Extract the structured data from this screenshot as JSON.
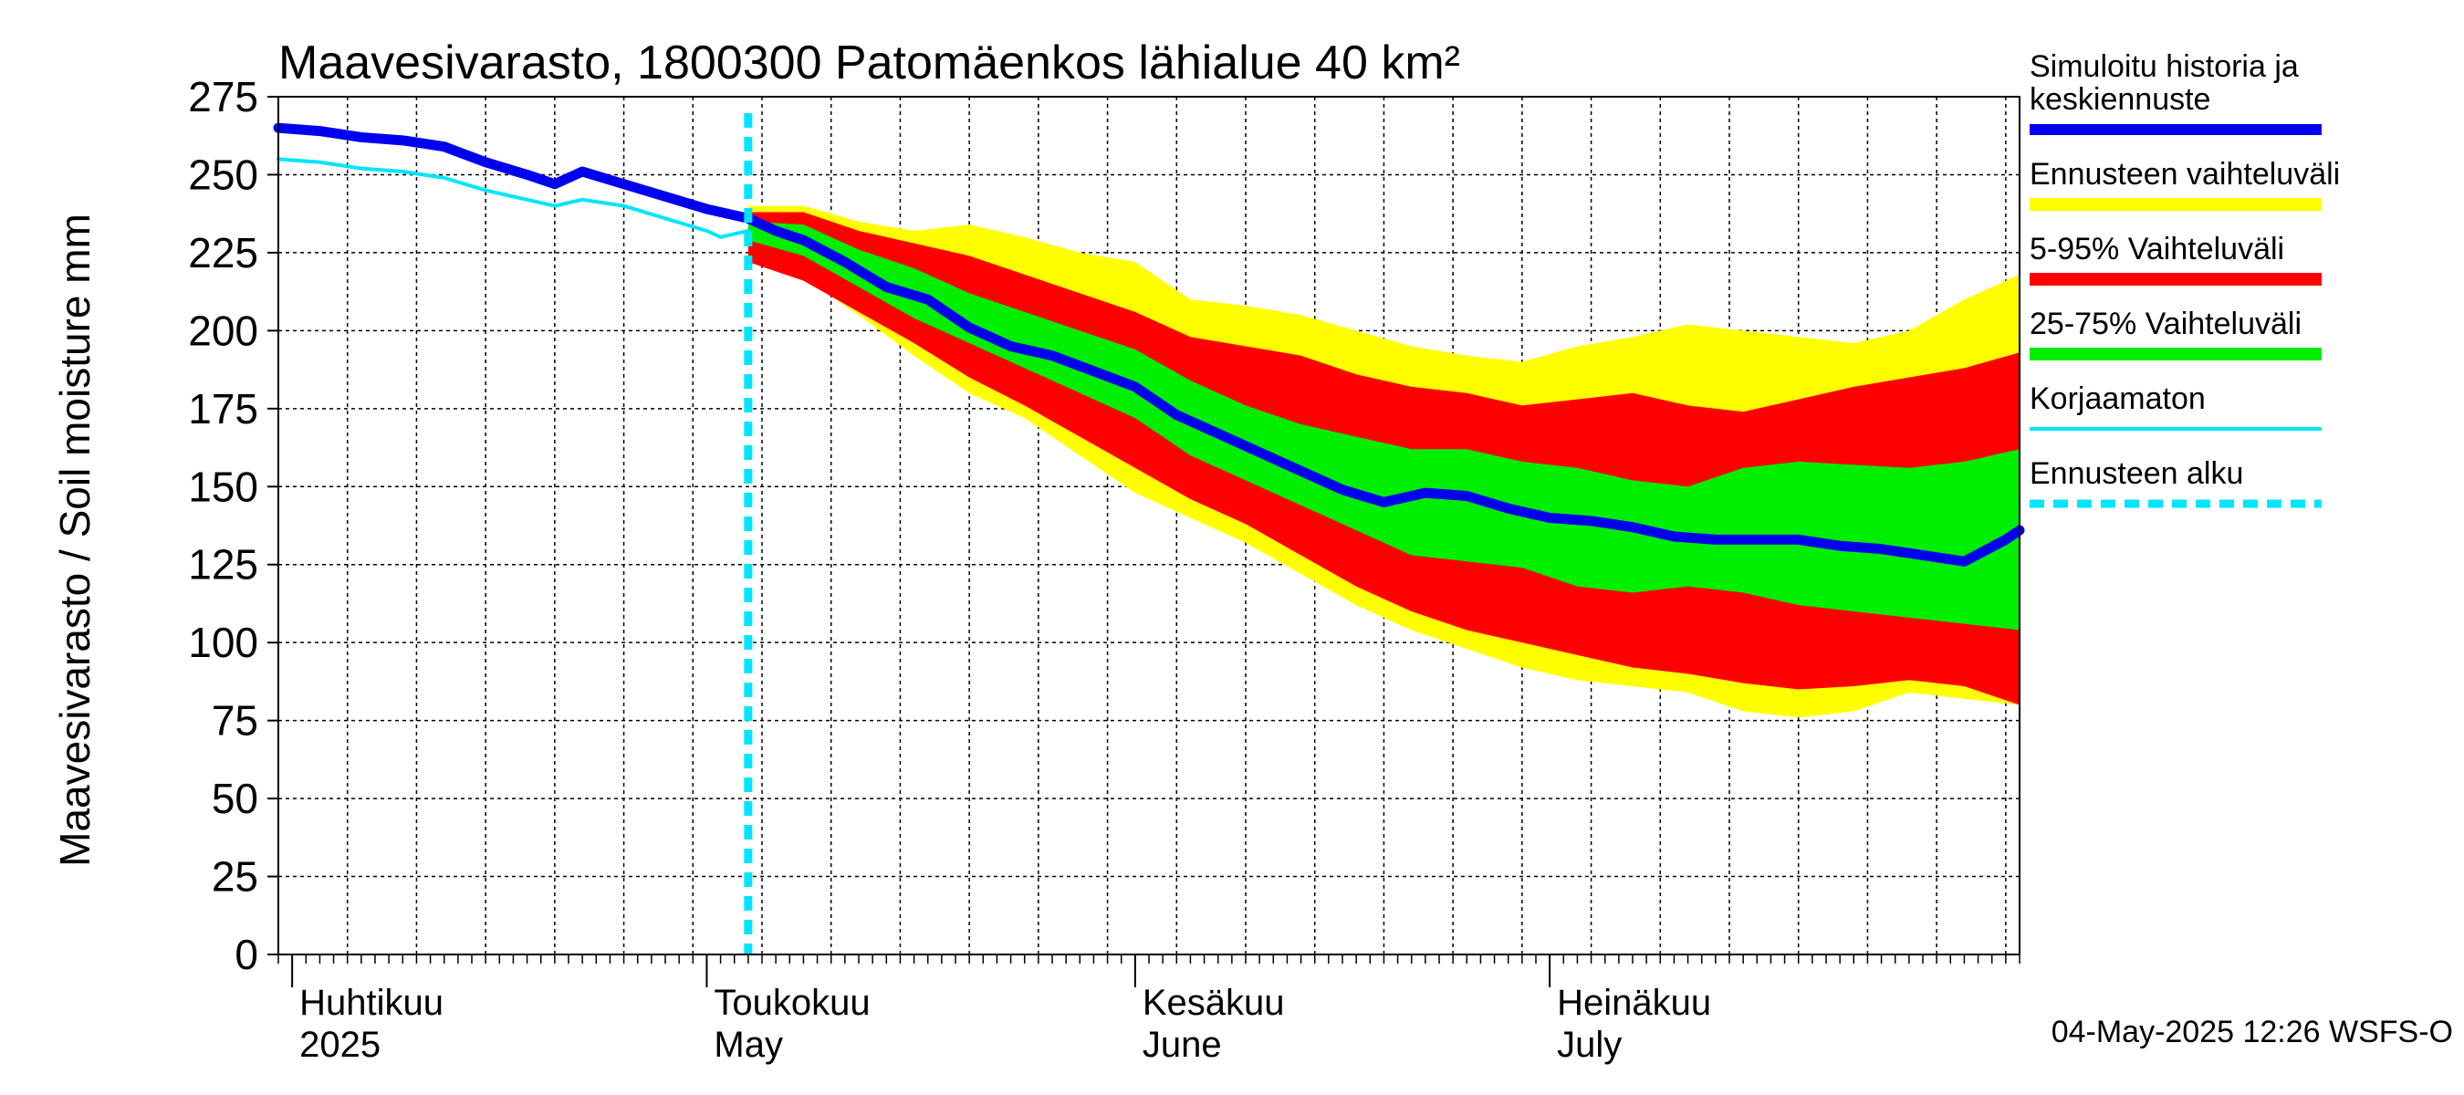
{
  "chart_data": {
    "type": "area",
    "title": "Maavesivarasto, 1800300 Patomäenkos lähialue 40 km²",
    "ylabel": "Maavesivarasto / Soil moisture   mm",
    "ylim": [
      0,
      275
    ],
    "yticks": [
      0,
      25,
      50,
      75,
      100,
      125,
      150,
      175,
      200,
      225,
      250,
      275
    ],
    "xlim": [
      "2025-03-31",
      "2025-08-04"
    ],
    "grid": true,
    "legend_position": "right",
    "month_labels": [
      {
        "date": "2025-04-01",
        "fi": "Huhtikuu",
        "en": "2025"
      },
      {
        "date": "2025-05-01",
        "fi": "Toukokuu",
        "en": "May"
      },
      {
        "date": "2025-06-01",
        "fi": "Kesäkuu",
        "en": "June"
      },
      {
        "date": "2025-07-01",
        "fi": "Heinäkuu",
        "en": "July"
      }
    ],
    "forecast_start": "2025-05-04",
    "footer": "04-May-2025 12:26 WSFS-O",
    "legend": [
      {
        "label": "Simuloitu historia ja keskiennuste",
        "color": "#0000ee",
        "style": "thick"
      },
      {
        "label": "Ennusteen vaihteluväli",
        "color": "#ffff00",
        "style": "band"
      },
      {
        "label": "5-95% Vaihteluväli",
        "color": "#ff0000",
        "style": "band"
      },
      {
        "label": "25-75% Vaihteluväli",
        "color": "#00ee00",
        "style": "band"
      },
      {
        "label": "Korjaamaton",
        "color": "#00e5ff",
        "style": "thin"
      },
      {
        "label": "Ennusteen alku",
        "color": "#00e5ff",
        "style": "dashed"
      }
    ],
    "series": [
      {
        "name": "Simuloitu historia ja keskiennuste",
        "color": "#0000ee",
        "points": [
          [
            "2025-03-31",
            265
          ],
          [
            "2025-04-03",
            264
          ],
          [
            "2025-04-06",
            262
          ],
          [
            "2025-04-09",
            261
          ],
          [
            "2025-04-12",
            259
          ],
          [
            "2025-04-15",
            254
          ],
          [
            "2025-04-18",
            250
          ],
          [
            "2025-04-20",
            247
          ],
          [
            "2025-04-22",
            251
          ],
          [
            "2025-04-25",
            247
          ],
          [
            "2025-04-28",
            243
          ],
          [
            "2025-05-01",
            239
          ],
          [
            "2025-05-04",
            236
          ],
          [
            "2025-05-06",
            232
          ],
          [
            "2025-05-08",
            229
          ],
          [
            "2025-05-11",
            222
          ],
          [
            "2025-05-14",
            214
          ],
          [
            "2025-05-17",
            210
          ],
          [
            "2025-05-20",
            201
          ],
          [
            "2025-05-23",
            195
          ],
          [
            "2025-05-26",
            192
          ],
          [
            "2025-05-29",
            187
          ],
          [
            "2025-06-01",
            182
          ],
          [
            "2025-06-04",
            173
          ],
          [
            "2025-06-07",
            167
          ],
          [
            "2025-06-10",
            161
          ],
          [
            "2025-06-13",
            155
          ],
          [
            "2025-06-16",
            149
          ],
          [
            "2025-06-19",
            145
          ],
          [
            "2025-06-22",
            148
          ],
          [
            "2025-06-25",
            147
          ],
          [
            "2025-06-28",
            143
          ],
          [
            "2025-07-01",
            140
          ],
          [
            "2025-07-04",
            139
          ],
          [
            "2025-07-07",
            137
          ],
          [
            "2025-07-10",
            134
          ],
          [
            "2025-07-13",
            133
          ],
          [
            "2025-07-16",
            133
          ],
          [
            "2025-07-19",
            133
          ],
          [
            "2025-07-22",
            131
          ],
          [
            "2025-07-25",
            130
          ],
          [
            "2025-07-28",
            128
          ],
          [
            "2025-07-31",
            126
          ],
          [
            "2025-08-03",
            133
          ],
          [
            "2025-08-04",
            136
          ]
        ]
      },
      {
        "name": "Korjaamaton",
        "color": "#00e5ff",
        "points": [
          [
            "2025-03-31",
            255
          ],
          [
            "2025-04-03",
            254
          ],
          [
            "2025-04-06",
            252
          ],
          [
            "2025-04-09",
            251
          ],
          [
            "2025-04-12",
            249
          ],
          [
            "2025-04-15",
            245
          ],
          [
            "2025-04-18",
            242
          ],
          [
            "2025-04-20",
            240
          ],
          [
            "2025-04-22",
            242
          ],
          [
            "2025-04-25",
            240
          ],
          [
            "2025-04-28",
            236
          ],
          [
            "2025-05-01",
            232
          ],
          [
            "2025-05-02",
            230
          ],
          [
            "2025-05-04",
            232
          ]
        ]
      }
    ],
    "bands": [
      {
        "name": "Ennusteen vaihteluväli",
        "color": "#ffff00",
        "upper": [
          [
            "2025-05-04",
            240
          ],
          [
            "2025-05-08",
            240
          ],
          [
            "2025-05-12",
            235
          ],
          [
            "2025-05-16",
            232
          ],
          [
            "2025-05-20",
            234
          ],
          [
            "2025-05-24",
            230
          ],
          [
            "2025-05-28",
            225
          ],
          [
            "2025-06-01",
            222
          ],
          [
            "2025-06-05",
            210
          ],
          [
            "2025-06-09",
            208
          ],
          [
            "2025-06-13",
            205
          ],
          [
            "2025-06-17",
            200
          ],
          [
            "2025-06-21",
            195
          ],
          [
            "2025-06-25",
            192
          ],
          [
            "2025-06-29",
            190
          ],
          [
            "2025-07-03",
            195
          ],
          [
            "2025-07-07",
            198
          ],
          [
            "2025-07-11",
            202
          ],
          [
            "2025-07-15",
            200
          ],
          [
            "2025-07-19",
            198
          ],
          [
            "2025-07-23",
            196
          ],
          [
            "2025-07-27",
            200
          ],
          [
            "2025-07-31",
            210
          ],
          [
            "2025-08-04",
            218
          ]
        ],
        "lower": [
          [
            "2025-05-04",
            222
          ],
          [
            "2025-05-08",
            217
          ],
          [
            "2025-05-12",
            205
          ],
          [
            "2025-05-16",
            192
          ],
          [
            "2025-05-20",
            180
          ],
          [
            "2025-05-24",
            172
          ],
          [
            "2025-05-28",
            160
          ],
          [
            "2025-06-01",
            148
          ],
          [
            "2025-06-05",
            140
          ],
          [
            "2025-06-09",
            132
          ],
          [
            "2025-06-13",
            122
          ],
          [
            "2025-06-17",
            112
          ],
          [
            "2025-06-21",
            104
          ],
          [
            "2025-06-25",
            98
          ],
          [
            "2025-06-29",
            92
          ],
          [
            "2025-07-03",
            88
          ],
          [
            "2025-07-07",
            86
          ],
          [
            "2025-07-11",
            84
          ],
          [
            "2025-07-15",
            78
          ],
          [
            "2025-07-19",
            76
          ],
          [
            "2025-07-23",
            78
          ],
          [
            "2025-07-27",
            84
          ],
          [
            "2025-07-31",
            82
          ],
          [
            "2025-08-04",
            80
          ]
        ]
      },
      {
        "name": "5-95% Vaihteluväli",
        "color": "#ff0000",
        "upper": [
          [
            "2025-05-04",
            238
          ],
          [
            "2025-05-08",
            238
          ],
          [
            "2025-05-12",
            232
          ],
          [
            "2025-05-16",
            228
          ],
          [
            "2025-05-20",
            224
          ],
          [
            "2025-05-24",
            218
          ],
          [
            "2025-05-28",
            212
          ],
          [
            "2025-06-01",
            206
          ],
          [
            "2025-06-05",
            198
          ],
          [
            "2025-06-09",
            195
          ],
          [
            "2025-06-13",
            192
          ],
          [
            "2025-06-17",
            186
          ],
          [
            "2025-06-21",
            182
          ],
          [
            "2025-06-25",
            180
          ],
          [
            "2025-06-29",
            176
          ],
          [
            "2025-07-03",
            178
          ],
          [
            "2025-07-07",
            180
          ],
          [
            "2025-07-11",
            176
          ],
          [
            "2025-07-15",
            174
          ],
          [
            "2025-07-19",
            178
          ],
          [
            "2025-07-23",
            182
          ],
          [
            "2025-07-27",
            185
          ],
          [
            "2025-07-31",
            188
          ],
          [
            "2025-08-04",
            193
          ]
        ],
        "lower": [
          [
            "2025-05-04",
            222
          ],
          [
            "2025-05-08",
            216
          ],
          [
            "2025-05-12",
            206
          ],
          [
            "2025-05-16",
            196
          ],
          [
            "2025-05-20",
            185
          ],
          [
            "2025-05-24",
            176
          ],
          [
            "2025-05-28",
            166
          ],
          [
            "2025-06-01",
            156
          ],
          [
            "2025-06-05",
            146
          ],
          [
            "2025-06-09",
            138
          ],
          [
            "2025-06-13",
            128
          ],
          [
            "2025-06-17",
            118
          ],
          [
            "2025-06-21",
            110
          ],
          [
            "2025-06-25",
            104
          ],
          [
            "2025-06-29",
            100
          ],
          [
            "2025-07-03",
            96
          ],
          [
            "2025-07-07",
            92
          ],
          [
            "2025-07-11",
            90
          ],
          [
            "2025-07-15",
            87
          ],
          [
            "2025-07-19",
            85
          ],
          [
            "2025-07-23",
            86
          ],
          [
            "2025-07-27",
            88
          ],
          [
            "2025-07-31",
            86
          ],
          [
            "2025-08-04",
            80
          ]
        ]
      },
      {
        "name": "25-75% Vaihteluväli",
        "color": "#00ee00",
        "upper": [
          [
            "2025-05-04",
            235
          ],
          [
            "2025-05-08",
            234
          ],
          [
            "2025-05-12",
            226
          ],
          [
            "2025-05-16",
            220
          ],
          [
            "2025-05-20",
            212
          ],
          [
            "2025-05-24",
            206
          ],
          [
            "2025-05-28",
            200
          ],
          [
            "2025-06-01",
            194
          ],
          [
            "2025-06-05",
            184
          ],
          [
            "2025-06-09",
            176
          ],
          [
            "2025-06-13",
            170
          ],
          [
            "2025-06-17",
            166
          ],
          [
            "2025-06-21",
            162
          ],
          [
            "2025-06-25",
            162
          ],
          [
            "2025-06-29",
            158
          ],
          [
            "2025-07-03",
            156
          ],
          [
            "2025-07-07",
            152
          ],
          [
            "2025-07-11",
            150
          ],
          [
            "2025-07-15",
            156
          ],
          [
            "2025-07-19",
            158
          ],
          [
            "2025-07-23",
            157
          ],
          [
            "2025-07-27",
            156
          ],
          [
            "2025-07-31",
            158
          ],
          [
            "2025-08-04",
            162
          ]
        ],
        "lower": [
          [
            "2025-05-04",
            229
          ],
          [
            "2025-05-08",
            224
          ],
          [
            "2025-05-12",
            214
          ],
          [
            "2025-05-16",
            204
          ],
          [
            "2025-05-20",
            196
          ],
          [
            "2025-05-24",
            188
          ],
          [
            "2025-05-28",
            180
          ],
          [
            "2025-06-01",
            172
          ],
          [
            "2025-06-05",
            160
          ],
          [
            "2025-06-09",
            152
          ],
          [
            "2025-06-13",
            144
          ],
          [
            "2025-06-17",
            136
          ],
          [
            "2025-06-21",
            128
          ],
          [
            "2025-06-25",
            126
          ],
          [
            "2025-06-29",
            124
          ],
          [
            "2025-07-03",
            118
          ],
          [
            "2025-07-07",
            116
          ],
          [
            "2025-07-11",
            118
          ],
          [
            "2025-07-15",
            116
          ],
          [
            "2025-07-19",
            112
          ],
          [
            "2025-07-23",
            110
          ],
          [
            "2025-07-27",
            108
          ],
          [
            "2025-07-31",
            106
          ],
          [
            "2025-08-04",
            104
          ]
        ]
      }
    ]
  }
}
